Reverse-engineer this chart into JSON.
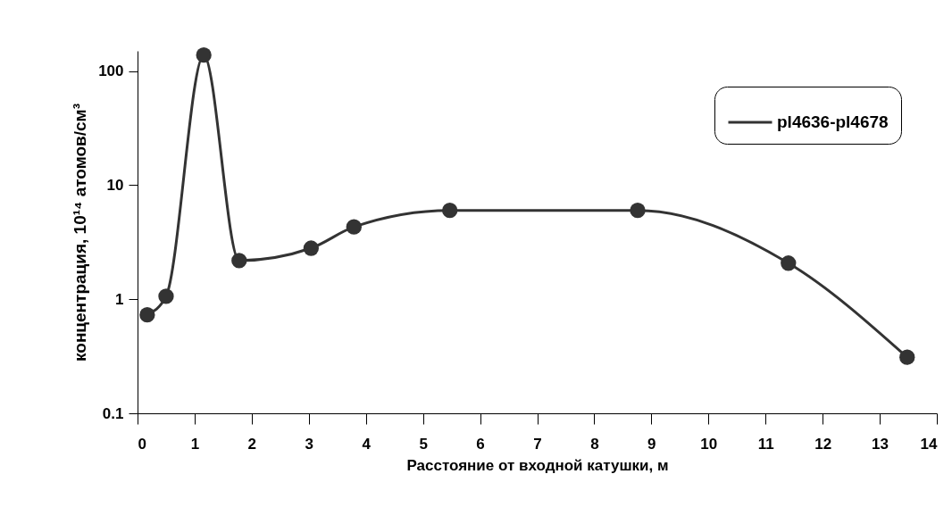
{
  "chart_data": {
    "type": "line",
    "xlabel": "Расстояние от входной катушки, м",
    "ylabel": "концентрация, 10¹⁴ атомов/см³",
    "x": [
      0.17,
      0.5,
      1.16,
      1.78,
      3.04,
      3.79,
      5.47,
      8.76,
      11.4,
      13.48
    ],
    "series": [
      {
        "name": "pl4636-pl4678",
        "color": "#333333",
        "values": [
          0.73,
          1.06,
          138,
          2.18,
          2.8,
          4.3,
          6.0,
          6.0,
          2.07,
          0.31
        ]
      }
    ],
    "log": true,
    "xlim": [
      0,
      14
    ],
    "xticks": [
      0,
      1,
      2,
      3,
      4,
      5,
      6,
      7,
      8,
      9,
      10,
      11,
      12,
      13,
      14
    ],
    "ylim": [
      0.1,
      150
    ],
    "yticks": [
      0.1,
      1,
      10,
      100
    ],
    "marker": "circle",
    "legend": "top right",
    "grid": false
  }
}
